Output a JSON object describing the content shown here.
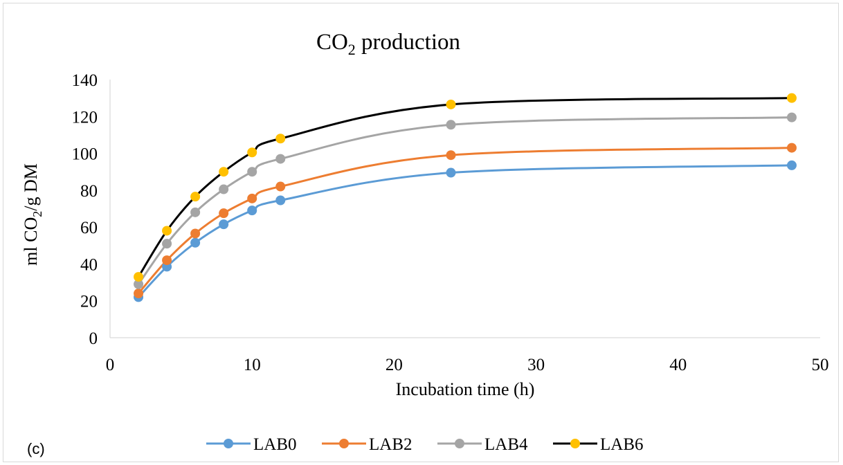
{
  "panel_label": "(c)",
  "chart_data": {
    "type": "line",
    "title_main": "CO",
    "title_sub": "2",
    "title_rest": " production",
    "xlabel": "Incubation time (h)",
    "ylabel_parts": {
      "a": "ml CO",
      "sub": "2",
      "b": "/g DM"
    },
    "xlim": [
      0,
      50
    ],
    "ylim": [
      0,
      140
    ],
    "xticks": [
      0,
      10,
      20,
      30,
      40,
      50
    ],
    "yticks": [
      0,
      20,
      40,
      60,
      80,
      100,
      120,
      140
    ],
    "grid": false,
    "legend_position": "bottom",
    "x": [
      2,
      4,
      6,
      8,
      10,
      12,
      24,
      48
    ],
    "series": [
      {
        "name": "LAB0",
        "values": [
          22,
          38.5,
          51.5,
          61.5,
          69,
          74.5,
          89.5,
          93.5
        ],
        "line_color": "#5b9bd5",
        "marker_color": "#5b9bd5"
      },
      {
        "name": "LAB2",
        "values": [
          24,
          42,
          56.5,
          67.5,
          75.5,
          82,
          99,
          103
        ],
        "line_color": "#ed7d31",
        "marker_color": "#ed7d31"
      },
      {
        "name": "LAB4",
        "values": [
          29,
          51,
          68,
          80.5,
          90,
          97,
          115.5,
          119.5
        ],
        "line_color": "#a5a5a5",
        "marker_color": "#a5a5a5"
      },
      {
        "name": "LAB6",
        "values": [
          33,
          58,
          76.5,
          90,
          100.5,
          108,
          126.5,
          130
        ],
        "line_color": "#000000",
        "marker_color": "#ffc000"
      }
    ]
  }
}
